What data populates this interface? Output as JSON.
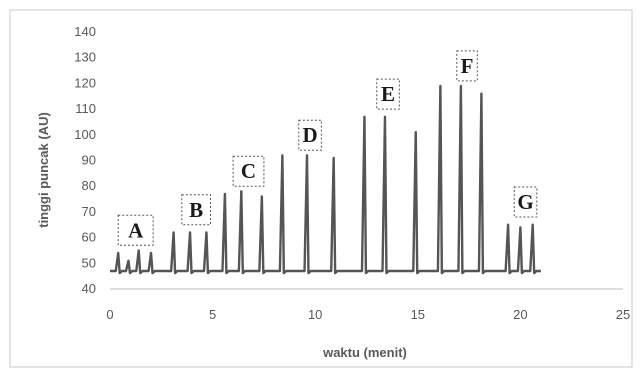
{
  "chart_data": {
    "type": "line",
    "title": "",
    "xlabel": "waktu (menit)",
    "ylabel": "tinggi puncak (AU)",
    "xlim": [
      0,
      25
    ],
    "ylim": [
      40,
      140
    ],
    "xticks": [
      0,
      5,
      10,
      15,
      20,
      25
    ],
    "yticks": [
      40,
      50,
      60,
      70,
      80,
      90,
      100,
      110,
      120,
      130,
      140
    ],
    "grid": false,
    "legend": "none",
    "color": "#555555",
    "baseline": 47,
    "series": [
      {
        "peaks_x": [
          0.4,
          0.9,
          1.4,
          2.0,
          3.1,
          3.9,
          4.7,
          5.6,
          6.4,
          7.4,
          8.4,
          9.6,
          10.9,
          12.4,
          13.4,
          14.9,
          16.1,
          17.1,
          18.1,
          19.4,
          20.0,
          20.6
        ],
        "peaks_y": [
          54,
          51,
          55,
          54,
          62,
          62,
          62,
          77,
          78,
          76,
          92,
          92,
          91,
          107,
          107,
          101,
          119,
          119,
          116,
          65,
          64,
          65
        ]
      }
    ],
    "peak_groups": [
      {
        "label": "A",
        "x": [
          0.4,
          2.1
        ],
        "top": 57
      },
      {
        "label": "B",
        "x": [
          3.5,
          4.9
        ],
        "top": 65
      },
      {
        "label": "C",
        "x": [
          6.0,
          7.5
        ],
        "top": 80
      },
      {
        "label": "D",
        "x": [
          9.2,
          10.3
        ],
        "top": 94
      },
      {
        "label": "E",
        "x": [
          13.0,
          14.1
        ],
        "top": 110
      },
      {
        "label": "F",
        "x": [
          16.9,
          17.9
        ],
        "top": 121
      },
      {
        "label": "G",
        "x": [
          19.7,
          20.8
        ],
        "top": 68
      }
    ]
  }
}
